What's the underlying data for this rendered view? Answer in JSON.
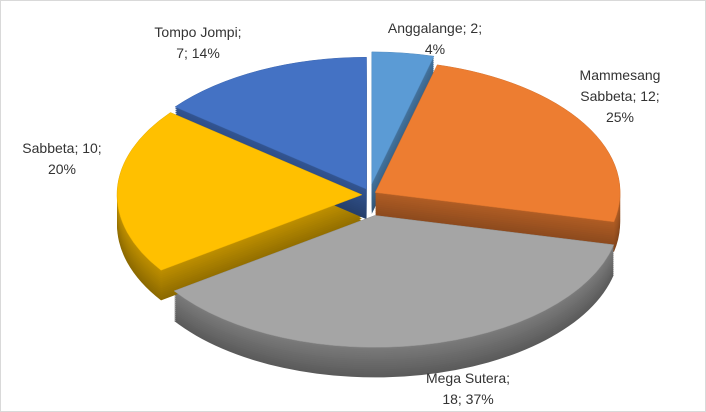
{
  "chart_data": {
    "type": "pie",
    "values": [
      2,
      12,
      18,
      10,
      7
    ],
    "value_labels": [
      [
        "Anggalange; 2;",
        "4%"
      ],
      [
        "Mammesang",
        "Sabbeta; 12;",
        "25%"
      ],
      [
        "Mega Sutera;",
        "18; 37%"
      ],
      [
        "Sabbeta; 10;",
        "20%"
      ],
      [
        "Tompo Jompi;",
        "7; 14%"
      ]
    ],
    "colors": [
      "#5b9bd5",
      "#ed7d31",
      "#a5a5a5",
      "#ffc000",
      "#4472c4"
    ]
  }
}
